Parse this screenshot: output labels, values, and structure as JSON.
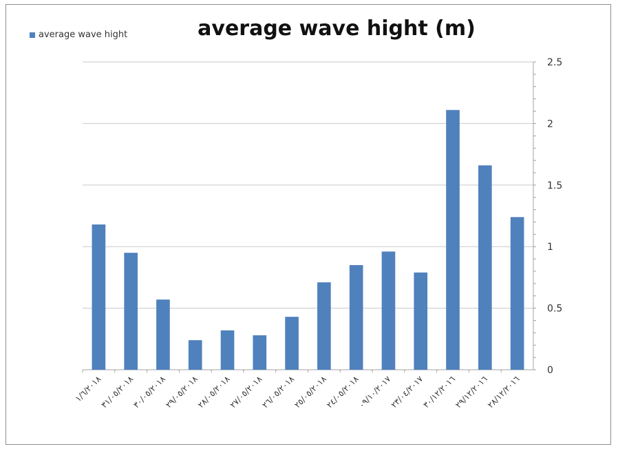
{
  "chart_data": {
    "type": "bar",
    "title": "average wave hight (m)",
    "xlabel": "",
    "ylabel": "",
    "categories": [
      "١/٦/٢٠١٨",
      "٣١/٠٥/٢٠١٨",
      "٣٠/٠٥/٢٠١٨",
      "٢٩/٠٥/٢٠١٨",
      "٢٨/٠٥/٢٠١٨",
      "٢٧/٠٥/٢٠١٨",
      "٢٦/٠٥/٢٠١٨",
      "٢٥/٠٥/٢٠١٨",
      "٢٤/٠٥/٢٠١٨",
      "٠٩/١٠/٢٠١٧",
      "٢٣/٠٤/٢٠١٧",
      "٣٠/١٢/٢٠١٦",
      "٢٩/١٢/٢٠١٦",
      "٢٨/١٢/٢٠١٦"
    ],
    "series": [
      {
        "name": "average wave hight",
        "color": "#4f81bd",
        "values": [
          1.18,
          0.95,
          0.57,
          0.24,
          0.32,
          0.28,
          0.43,
          0.71,
          0.85,
          0.96,
          0.79,
          2.11,
          1.66,
          1.24
        ]
      }
    ],
    "ylim": [
      0,
      2.5
    ],
    "yticks": [
      0,
      0.5,
      1,
      1.5,
      2,
      2.5
    ],
    "ytick_labels": [
      "0",
      "0.5",
      "1",
      "1.5",
      "2",
      "2.5"
    ],
    "y_axis_side": "right",
    "grid": true,
    "legend_position": "top-left"
  }
}
